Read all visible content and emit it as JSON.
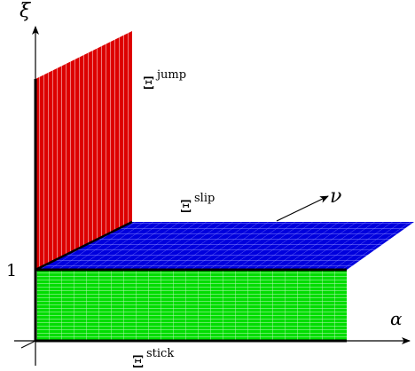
{
  "labels": {
    "axis_vertical": "ξ",
    "axis_horizontal": "α",
    "axis_diagonal": "ν",
    "tick_one": "1",
    "region_jump": {
      "symbol": "Ξ",
      "superscript": "jump"
    },
    "region_slip": {
      "symbol": "Ξ",
      "superscript": "slip"
    },
    "region_stick": {
      "symbol": "Ξ",
      "superscript": "stick"
    }
  },
  "colors": {
    "jump": "#dd0000",
    "slip": "#0000dd",
    "stick": "#00dd00",
    "hatch_light": "#ffffff",
    "axis": "#000000"
  }
}
